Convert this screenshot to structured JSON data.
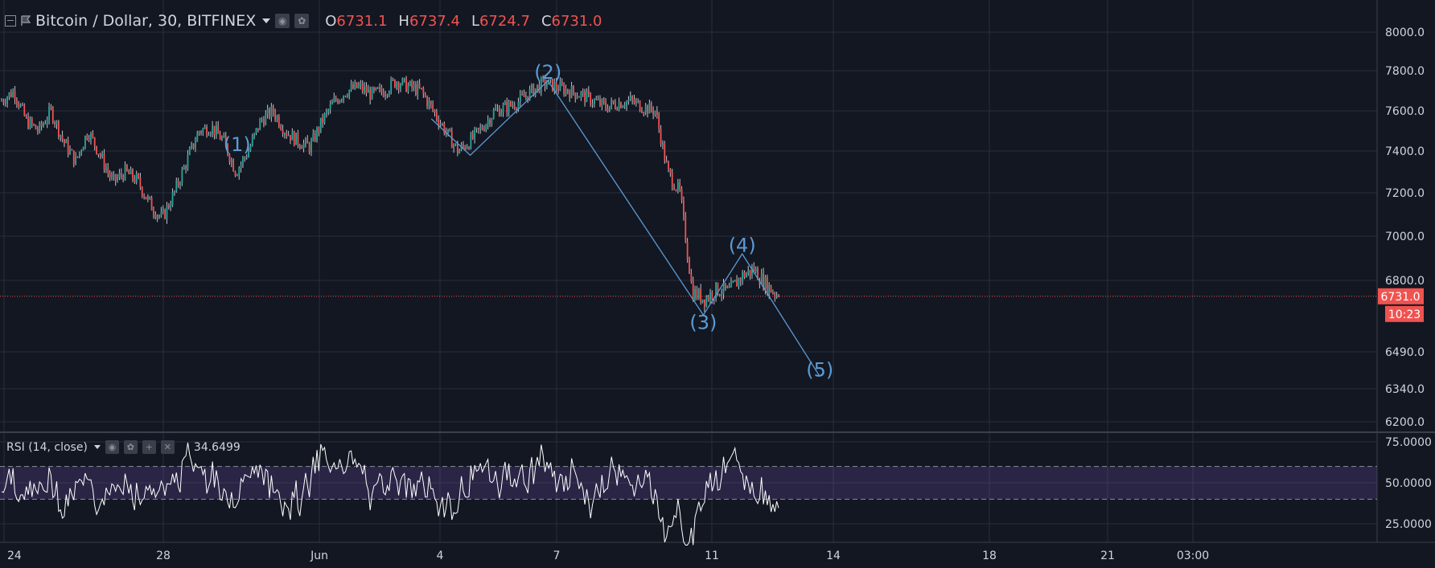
{
  "header": {
    "symbol": "Bitcoin / Dollar, 30, BITFINEX",
    "o_label": "O",
    "o_value": "6731.1",
    "h_label": "H",
    "h_value": "6737.4",
    "l_label": "L",
    "l_value": "6724.7",
    "c_label": "C",
    "c_value": "6731.0",
    "icons": [
      "collapse-icon",
      "flag-icon",
      "chevron-down-icon",
      "eye-icon",
      "gear-icon"
    ]
  },
  "rsi_header": {
    "label": "RSI (14, close)",
    "value": "34.6499",
    "icons": [
      "chevron-down-icon",
      "eye-icon",
      "gear-icon",
      "plus-icon",
      "close-icon"
    ]
  },
  "price_badge": "6731.0",
  "timer_badge": "10:23",
  "colors": {
    "background": "#131722",
    "grid": "#2a2e39",
    "up": "#26a69a",
    "down": "#ef5350",
    "wave": "#5b9bd5",
    "rsi_line": "#ffffff",
    "rsi_band": "#7e57c2"
  },
  "chart_data": [
    {
      "type": "candlestick",
      "title": "Bitcoin / Dollar, 30, BITFINEX",
      "x_tick_labels": [
        "24",
        "28",
        "Jun",
        "4",
        "7",
        "11",
        "14",
        "18",
        "21",
        "03:00"
      ],
      "y_tick_values": [
        8000,
        7800,
        7600,
        7400,
        7200,
        7000,
        6800,
        6490,
        6340,
        6200
      ],
      "y_tick_labels": [
        "8000.0",
        "7800.0",
        "7600.0",
        "7400.0",
        "7200.0",
        "7000.0",
        "6800.0",
        "6490.0",
        "6340.0",
        "6200.0"
      ],
      "price_path": [
        7650,
        7700,
        7550,
        7500,
        7600,
        7450,
        7350,
        7500,
        7380,
        7250,
        7300,
        7260,
        7150,
        7080,
        7200,
        7350,
        7500,
        7520,
        7450,
        7300,
        7400,
        7550,
        7600,
        7500,
        7450,
        7420,
        7550,
        7650,
        7700,
        7720,
        7680,
        7700,
        7750,
        7720,
        7700,
        7600,
        7500,
        7400,
        7450,
        7520,
        7600,
        7620,
        7650,
        7700,
        7740,
        7720,
        7700,
        7680,
        7650,
        7620,
        7640,
        7650,
        7620,
        7600,
        7300,
        7200,
        6750,
        6720,
        6760,
        6750,
        6820,
        6850,
        6780,
        6731
      ],
      "last_price": 6731.0,
      "series": [
        {
          "name": "",
          "color_up": "#26a69a",
          "color_down": "#ef5350"
        }
      ],
      "annotations": [
        {
          "label": "(1)",
          "x": "May 30",
          "y": 7400
        },
        {
          "label": "(2)",
          "x": "Jun 7",
          "y": 7760
        },
        {
          "label": "(3)",
          "x": "Jun 11",
          "y": 6590
        },
        {
          "label": "(4)",
          "x": "Jun 12",
          "y": 6930
        },
        {
          "label": "(5)",
          "x": "Jun 14",
          "y": 6390
        }
      ],
      "wave_points": [
        {
          "x": "Jun 4",
          "y": 7560
        },
        {
          "x": "Jun 5",
          "y": 7380
        },
        {
          "x": "Jun 7",
          "y": 7750
        },
        {
          "x": "Jun 11",
          "y": 6650
        },
        {
          "x": "Jun 12",
          "y": 6920
        },
        {
          "x": "Jun 14",
          "y": 6390
        }
      ],
      "grid": true
    },
    {
      "type": "line",
      "title": "RSI (14, close)",
      "y_tick_values": [
        75,
        50,
        25
      ],
      "y_tick_labels": [
        "75.0000",
        "50.0000",
        "25.0000"
      ],
      "band": [
        40,
        60
      ],
      "last_value": 34.6499,
      "series": [
        {
          "name": "",
          "color": "#ffffff"
        }
      ],
      "grid": true
    }
  ]
}
